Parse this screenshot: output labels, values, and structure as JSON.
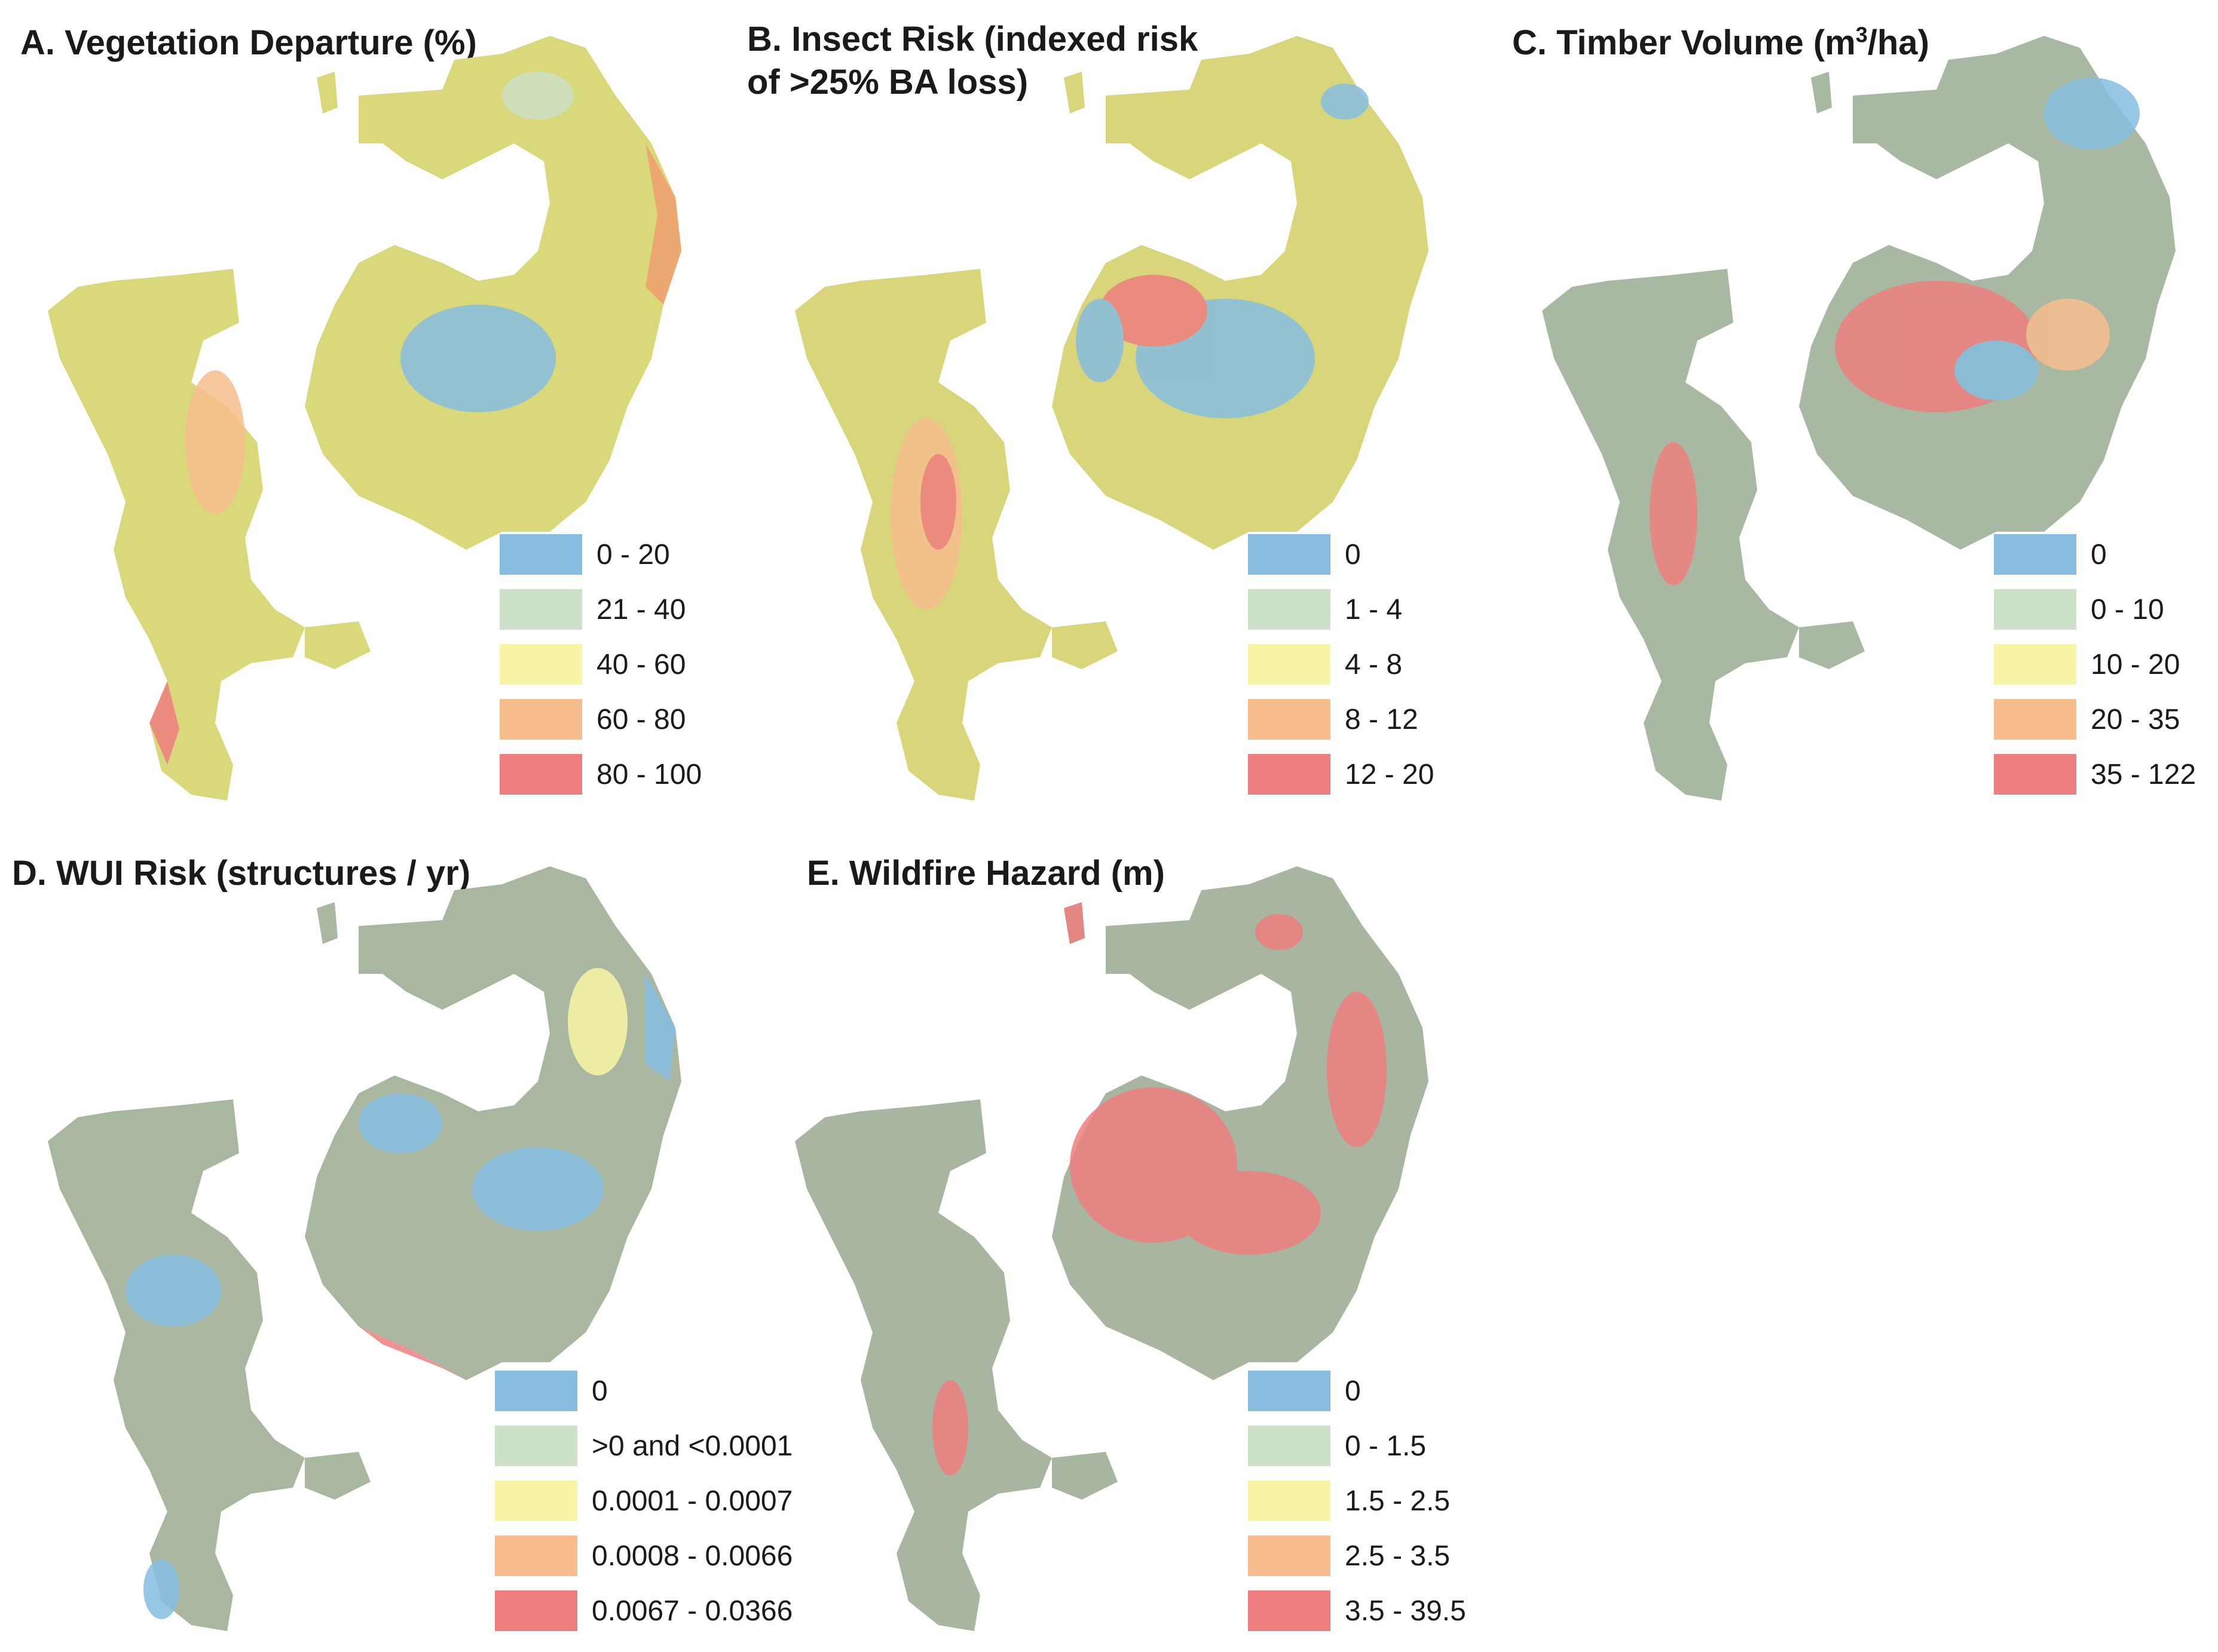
{
  "colors": {
    "blue": "#86bde0",
    "green": "#cde0c8",
    "yellow": "#f8f6a6",
    "orange": "#f7bd8d",
    "red": "#ef7f7f",
    "base_terrain": "#b9c3a6"
  },
  "panels": [
    {
      "id": "A",
      "title": "A. Vegetation Departure (%)",
      "fill": "#d9d87a",
      "legend": [
        {
          "label": "0 - 20",
          "color": "#86bde0"
        },
        {
          "label": "21 - 40",
          "color": "#cde0c8"
        },
        {
          "label": "40 - 60",
          "color": "#f8f6a6"
        },
        {
          "label": "60 - 80",
          "color": "#f7bd8d"
        },
        {
          "label": "80 - 100",
          "color": "#ef7f7f"
        }
      ]
    },
    {
      "id": "B",
      "title": "B. Insect Risk (indexed risk",
      "title_line2": "of >25% BA loss)",
      "fill": "#d8d57a",
      "legend": [
        {
          "label": "0",
          "color": "#86bde0"
        },
        {
          "label": "1 - 4",
          "color": "#cde0c8"
        },
        {
          "label": "4 - 8",
          "color": "#f8f6a6"
        },
        {
          "label": "8 - 12",
          "color": "#f7bd8d"
        },
        {
          "label": "12 - 20",
          "color": "#ef7f7f"
        }
      ]
    },
    {
      "id": "C",
      "title_prefix": "C. Timber Volume (m",
      "title_sup": "3",
      "title_suffix": "/ha)",
      "fill": "#a9b8a2",
      "legend": [
        {
          "label": "0",
          "color": "#86bde0"
        },
        {
          "label": "0 - 10",
          "color": "#cde0c8"
        },
        {
          "label": "10 - 20",
          "color": "#f8f6a6"
        },
        {
          "label": "20 - 35",
          "color": "#f7bd8d"
        },
        {
          "label": "35 - 122",
          "color": "#ef7f7f"
        }
      ]
    },
    {
      "id": "D",
      "title": "D. WUI Risk (structures / yr)",
      "fill": "#a9b6a0",
      "legend": [
        {
          "label": "0",
          "color": "#86bde0"
        },
        {
          "label": ">0 and <0.0001",
          "color": "#cde0c8"
        },
        {
          "label": "0.0001 - 0.0007",
          "color": "#f8f6a6"
        },
        {
          "label": "0.0008 - 0.0066",
          "color": "#f7bd8d"
        },
        {
          "label": "0.0067 - 0.0366",
          "color": "#ef7f7f"
        }
      ]
    },
    {
      "id": "E",
      "title": "E. Wildfire Hazard (m)",
      "fill": "#a8b5a1",
      "legend": [
        {
          "label": "0",
          "color": "#86bde0"
        },
        {
          "label": "0 - 1.5",
          "color": "#cde0c8"
        },
        {
          "label": "1.5 - 2.5",
          "color": "#f8f6a6"
        },
        {
          "label": "2.5 - 3.5",
          "color": "#f7bd8d"
        },
        {
          "label": "3.5 - 39.5",
          "color": "#ef7f7f"
        }
      ]
    }
  ]
}
